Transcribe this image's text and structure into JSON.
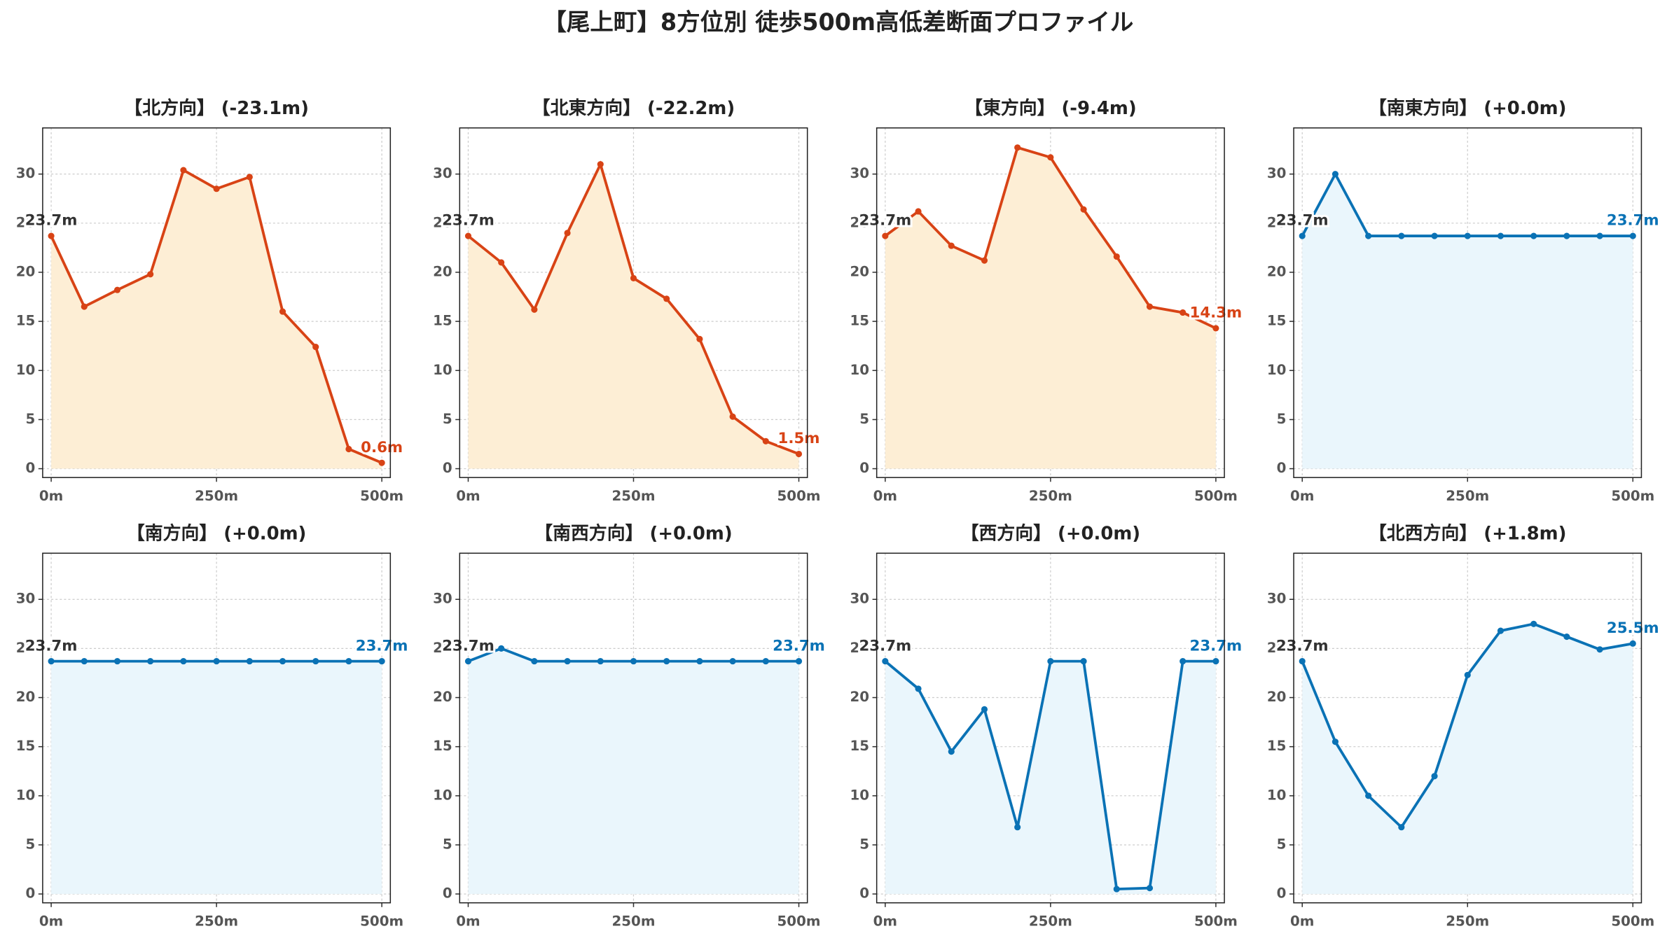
{
  "title": "【尾上町】8方位別 徒歩500m高低差断面プロファイル",
  "chart_data": [
    {
      "type": "line",
      "title": "【北方向】 (-23.1m)",
      "color": "#d84315",
      "fill_color": "#fdeed5",
      "x": [
        0,
        50,
        100,
        150,
        200,
        250,
        300,
        350,
        400,
        450,
        500
      ],
      "values": [
        23.7,
        16.5,
        18.2,
        19.8,
        30.4,
        28.5,
        29.7,
        16.0,
        12.4,
        2.0,
        0.6
      ],
      "value_labels": [
        "23.7m",
        null,
        null,
        null,
        null,
        null,
        null,
        null,
        null,
        null,
        "0.6m"
      ],
      "xlim": [
        -12.9,
        512.9
      ],
      "xticks": [
        {
          "value": 0,
          "label": "0m"
        },
        {
          "value": 250,
          "label": "250m"
        },
        {
          "value": 500,
          "label": "500m"
        }
      ],
      "ylim": [
        -0.9,
        34.7
      ],
      "yticks": [
        0,
        5,
        10,
        15,
        20,
        25,
        30
      ],
      "grid": true
    },
    {
      "type": "line",
      "title": "【北東方向】 (-22.2m)",
      "color": "#d84315",
      "fill_color": "#fdeed5",
      "x": [
        0,
        50,
        100,
        150,
        200,
        250,
        300,
        350,
        400,
        450,
        500
      ],
      "values": [
        23.7,
        21.0,
        16.2,
        24.0,
        31.0,
        19.4,
        17.3,
        13.2,
        5.3,
        2.8,
        1.5
      ],
      "value_labels": [
        "23.7m",
        null,
        null,
        null,
        null,
        null,
        null,
        null,
        null,
        null,
        "1.5m"
      ],
      "xlim": [
        -12.9,
        512.9
      ],
      "xticks": [
        {
          "value": 0,
          "label": "0m"
        },
        {
          "value": 250,
          "label": "250m"
        },
        {
          "value": 500,
          "label": "500m"
        }
      ],
      "ylim": [
        -0.9,
        34.7
      ],
      "yticks": [
        0,
        5,
        10,
        15,
        20,
        25,
        30
      ],
      "grid": true
    },
    {
      "type": "line",
      "title": "【東方向】 (-9.4m)",
      "color": "#d84315",
      "fill_color": "#fdeed5",
      "x": [
        0,
        50,
        100,
        150,
        200,
        250,
        300,
        350,
        400,
        450,
        500
      ],
      "values": [
        23.7,
        26.2,
        22.7,
        21.2,
        32.7,
        31.7,
        26.4,
        21.6,
        16.5,
        15.9,
        14.3
      ],
      "value_labels": [
        "23.7m",
        null,
        null,
        null,
        null,
        null,
        null,
        null,
        null,
        null,
        "14.3m"
      ],
      "xlim": [
        -12.9,
        512.9
      ],
      "xticks": [
        {
          "value": 0,
          "label": "0m"
        },
        {
          "value": 250,
          "label": "250m"
        },
        {
          "value": 500,
          "label": "500m"
        }
      ],
      "ylim": [
        -0.9,
        34.7
      ],
      "yticks": [
        0,
        5,
        10,
        15,
        20,
        25,
        30
      ],
      "grid": true
    },
    {
      "type": "line",
      "title": "【南東方向】 (+0.0m)",
      "color": "#0a72b5",
      "fill_color": "#eaf6fc",
      "x": [
        0,
        50,
        100,
        150,
        200,
        250,
        300,
        350,
        400,
        450,
        500
      ],
      "values": [
        23.7,
        30.0,
        23.7,
        23.7,
        23.7,
        23.7,
        23.7,
        23.7,
        23.7,
        23.7,
        23.7
      ],
      "value_labels": [
        "23.7m",
        null,
        null,
        null,
        null,
        null,
        null,
        null,
        null,
        null,
        "23.7m"
      ],
      "xlim": [
        -12.9,
        512.9
      ],
      "xticks": [
        {
          "value": 0,
          "label": "0m"
        },
        {
          "value": 250,
          "label": "250m"
        },
        {
          "value": 500,
          "label": "500m"
        }
      ],
      "ylim": [
        -0.9,
        34.7
      ],
      "yticks": [
        0,
        5,
        10,
        15,
        20,
        25,
        30
      ],
      "grid": true
    },
    {
      "type": "line",
      "title": "【南方向】 (+0.0m)",
      "color": "#0a72b5",
      "fill_color": "#eaf6fc",
      "x": [
        0,
        50,
        100,
        150,
        200,
        250,
        300,
        350,
        400,
        450,
        500
      ],
      "values": [
        23.7,
        23.7,
        23.7,
        23.7,
        23.7,
        23.7,
        23.7,
        23.7,
        23.7,
        23.7,
        23.7
      ],
      "value_labels": [
        "23.7m",
        null,
        null,
        null,
        null,
        null,
        null,
        null,
        null,
        null,
        "23.7m"
      ],
      "xlim": [
        -12.9,
        512.9
      ],
      "xticks": [
        {
          "value": 0,
          "label": "0m"
        },
        {
          "value": 250,
          "label": "250m"
        },
        {
          "value": 500,
          "label": "500m"
        }
      ],
      "ylim": [
        -0.9,
        34.7
      ],
      "yticks": [
        0,
        5,
        10,
        15,
        20,
        25,
        30
      ],
      "grid": true
    },
    {
      "type": "line",
      "title": "【南西方向】 (+0.0m)",
      "color": "#0a72b5",
      "fill_color": "#eaf6fc",
      "x": [
        0,
        50,
        100,
        150,
        200,
        250,
        300,
        350,
        400,
        450,
        500
      ],
      "values": [
        23.7,
        25.0,
        23.7,
        23.7,
        23.7,
        23.7,
        23.7,
        23.7,
        23.7,
        23.7,
        23.7
      ],
      "value_labels": [
        "23.7m",
        null,
        null,
        null,
        null,
        null,
        null,
        null,
        null,
        null,
        "23.7m"
      ],
      "xlim": [
        -12.9,
        512.9
      ],
      "xticks": [
        {
          "value": 0,
          "label": "0m"
        },
        {
          "value": 250,
          "label": "250m"
        },
        {
          "value": 500,
          "label": "500m"
        }
      ],
      "ylim": [
        -0.9,
        34.7
      ],
      "yticks": [
        0,
        5,
        10,
        15,
        20,
        25,
        30
      ],
      "grid": true
    },
    {
      "type": "line",
      "title": "【西方向】 (+0.0m)",
      "color": "#0a72b5",
      "fill_color": "#eaf6fc",
      "x": [
        0,
        50,
        100,
        150,
        200,
        250,
        300,
        350,
        400,
        450,
        500
      ],
      "values": [
        23.7,
        20.9,
        14.5,
        18.8,
        6.8,
        23.7,
        23.7,
        0.5,
        0.6,
        23.7,
        23.7
      ],
      "value_labels": [
        "23.7m",
        null,
        null,
        null,
        null,
        null,
        null,
        null,
        null,
        null,
        "23.7m"
      ],
      "xlim": [
        -12.9,
        512.9
      ],
      "xticks": [
        {
          "value": 0,
          "label": "0m"
        },
        {
          "value": 250,
          "label": "250m"
        },
        {
          "value": 500,
          "label": "500m"
        }
      ],
      "ylim": [
        -0.9,
        34.7
      ],
      "yticks": [
        0,
        5,
        10,
        15,
        20,
        25,
        30
      ],
      "grid": true
    },
    {
      "type": "line",
      "title": "【北西方向】 (+1.8m)",
      "color": "#0a72b5",
      "fill_color": "#eaf6fc",
      "x": [
        0,
        50,
        100,
        150,
        200,
        250,
        300,
        350,
        400,
        450,
        500
      ],
      "values": [
        23.7,
        15.5,
        10.0,
        6.8,
        12.0,
        22.3,
        26.8,
        27.5,
        26.2,
        24.9,
        25.5
      ],
      "value_labels": [
        "23.7m",
        null,
        null,
        null,
        null,
        null,
        null,
        null,
        null,
        null,
        "25.5m"
      ],
      "xlim": [
        -12.9,
        512.9
      ],
      "xticks": [
        {
          "value": 0,
          "label": "0m"
        },
        {
          "value": 250,
          "label": "250m"
        },
        {
          "value": 500,
          "label": "500m"
        }
      ],
      "ylim": [
        -0.9,
        34.7
      ],
      "yticks": [
        0,
        5,
        10,
        15,
        20,
        25,
        30
      ],
      "grid": true
    }
  ]
}
